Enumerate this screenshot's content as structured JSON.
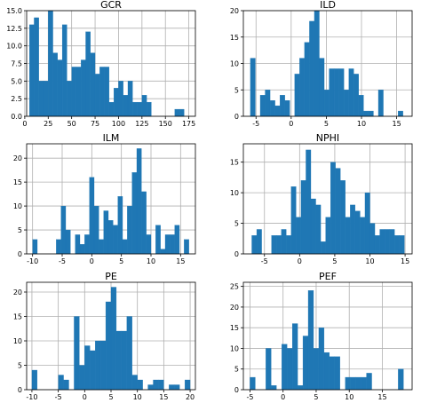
{
  "chart_data": [
    {
      "type": "bar",
      "title": "GCR",
      "bar_color": "#1f77b4",
      "grid": true,
      "xlim": [
        2,
        182
      ],
      "ylim": [
        0,
        15
      ],
      "xticks": [
        0,
        25,
        50,
        75,
        100,
        125,
        150,
        175
      ],
      "xtick_labels": [
        "0",
        "25",
        "50",
        "75",
        "100",
        "125",
        "150",
        "175"
      ],
      "yticks": [
        0,
        2.5,
        5,
        7.5,
        10,
        12.5,
        15
      ],
      "ytick_labels": [
        "0.0",
        "2.5",
        "5.0",
        "7.5",
        "10.0",
        "12.5",
        "15.0"
      ],
      "bin_edges": [
        5,
        10,
        15,
        20,
        25,
        30,
        35,
        40,
        45,
        50,
        55,
        60,
        65,
        70,
        75,
        80,
        85,
        90,
        95,
        100,
        105,
        110,
        115,
        120,
        125,
        130,
        135,
        140,
        145,
        150,
        155,
        160,
        165,
        170,
        175
      ],
      "counts": [
        13,
        14,
        5,
        5,
        15,
        9,
        8,
        13,
        5,
        7,
        7,
        8,
        12,
        9,
        6,
        7,
        7,
        2,
        4,
        5,
        3,
        5,
        2,
        2,
        3,
        2,
        0,
        0,
        0,
        0,
        0,
        1,
        1,
        0
      ]
    },
    {
      "type": "bar",
      "title": "ILD",
      "bar_color": "#1f77b4",
      "grid": true,
      "xlim": [
        -6.8,
        17.2
      ],
      "ylim": [
        0,
        20
      ],
      "xticks": [
        -5,
        0,
        5,
        10,
        15
      ],
      "xtick_labels": [
        "-5",
        "0",
        "5",
        "10",
        "15"
      ],
      "yticks": [
        0,
        5,
        10,
        15,
        20
      ],
      "ytick_labels": [
        "0",
        "5",
        "10",
        "15",
        "20"
      ],
      "bin_edges": [
        -5.8,
        -5.1,
        -4.4,
        -3.7,
        -3.0,
        -2.3,
        -1.6,
        -0.9,
        -0.2,
        0.5,
        1.2,
        1.9,
        2.6,
        3.3,
        4.0,
        4.7,
        5.4,
        6.1,
        6.8,
        7.5,
        8.2,
        8.9,
        9.6,
        10.3,
        11.0,
        11.7,
        12.4,
        13.1,
        13.8,
        14.5,
        15.2,
        15.9,
        16.6
      ],
      "counts": [
        11,
        0,
        4,
        5,
        3,
        2,
        4,
        3,
        0,
        8,
        11,
        14,
        18,
        20,
        11,
        5,
        9,
        9,
        9,
        5,
        9,
        8,
        4,
        1,
        1,
        0,
        5,
        0,
        0,
        0,
        1,
        0
      ]
    },
    {
      "type": "bar",
      "title": "ILM",
      "bar_color": "#1f77b4",
      "grid": true,
      "xlim": [
        -11,
        17.5
      ],
      "ylim": [
        0,
        23
      ],
      "xticks": [
        -10,
        -5,
        0,
        5,
        10,
        15
      ],
      "xtick_labels": [
        "-10",
        "-5",
        "0",
        "5",
        "10",
        "15"
      ],
      "yticks": [
        0,
        5,
        10,
        15,
        20
      ],
      "ytick_labels": [
        "0",
        "5",
        "10",
        "15",
        "20"
      ],
      "bin_edges": [
        -10.0,
        -9.2,
        -8.4,
        -7.6,
        -6.8,
        -6.0,
        -5.2,
        -4.4,
        -3.6,
        -2.8,
        -2.0,
        -1.2,
        -0.4,
        0.4,
        1.2,
        2.0,
        2.8,
        3.6,
        4.4,
        5.2,
        6.0,
        6.8,
        7.6,
        8.4,
        9.2,
        10.0,
        10.8,
        11.6,
        12.4,
        13.2,
        14.0,
        14.8,
        15.6,
        16.4
      ],
      "counts": [
        3,
        0,
        0,
        0,
        0,
        3,
        10,
        5,
        0,
        4,
        2,
        4,
        16,
        10,
        3,
        9,
        7,
        6,
        12,
        3,
        10,
        17,
        22,
        13,
        4,
        0,
        6,
        1,
        4,
        4,
        6,
        0,
        3
      ]
    },
    {
      "type": "bar",
      "title": "NPHI",
      "bar_color": "#1f77b4",
      "grid": true,
      "xlim": [
        -8,
        16
      ],
      "ylim": [
        0,
        18
      ],
      "xticks": [
        -5,
        0,
        5,
        10,
        15
      ],
      "xtick_labels": [
        "-5",
        "0",
        "5",
        "10",
        "15"
      ],
      "yticks": [
        0,
        5,
        10,
        15
      ],
      "ytick_labels": [
        "0",
        "5",
        "10",
        "15"
      ],
      "bin_edges": [
        -6.8,
        -6.1,
        -5.4,
        -4.7,
        -4.0,
        -3.3,
        -2.6,
        -1.9,
        -1.2,
        -0.5,
        0.2,
        0.9,
        1.6,
        2.3,
        3.0,
        3.7,
        4.4,
        5.1,
        5.8,
        6.5,
        7.2,
        7.9,
        8.6,
        9.3,
        10.0,
        10.7,
        11.4,
        12.1,
        12.8,
        13.5,
        14.2,
        14.9
      ],
      "counts": [
        3,
        4,
        0,
        0,
        3,
        3,
        4,
        3,
        11,
        6,
        12,
        17,
        9,
        8,
        2,
        6,
        15,
        14,
        12,
        6,
        8,
        7,
        6,
        10,
        5,
        3,
        4,
        4,
        4,
        3,
        3
      ]
    },
    {
      "type": "bar",
      "title": "PE",
      "bar_color": "#1f77b4",
      "grid": true,
      "xlim": [
        -11,
        21
      ],
      "ylim": [
        0,
        22
      ],
      "xticks": [
        -10,
        -5,
        0,
        5,
        10,
        15,
        20
      ],
      "xtick_labels": [
        "-10",
        "-5",
        "0",
        "5",
        "10",
        "15",
        "20"
      ],
      "yticks": [
        0,
        5,
        10,
        15,
        20
      ],
      "ytick_labels": [
        "0",
        "5",
        "10",
        "15",
        "20"
      ],
      "bin_edges": [
        -10.0,
        -9.0,
        -8.0,
        -7.0,
        -6.0,
        -5.0,
        -4.0,
        -3.0,
        -2.0,
        -1.0,
        0.0,
        1.0,
        2.0,
        3.0,
        4.0,
        5.0,
        6.0,
        7.0,
        8.0,
        9.0,
        10.0,
        11.0,
        12.0,
        13.0,
        14.0,
        15.0,
        16.0,
        17.0,
        18.0,
        19.0,
        20.0
      ],
      "counts": [
        4,
        0,
        0,
        0,
        0,
        3,
        2,
        0,
        15,
        5,
        9,
        8,
        10,
        10,
        18,
        21,
        12,
        12,
        15,
        3,
        2,
        0,
        1,
        2,
        2,
        0,
        1,
        1,
        0,
        2
      ]
    },
    {
      "type": "bar",
      "title": "PEF",
      "bar_color": "#1f77b4",
      "grid": true,
      "xlim": [
        -6,
        19.5
      ],
      "ylim": [
        0,
        26
      ],
      "xticks": [
        -5,
        0,
        5,
        10,
        15
      ],
      "xtick_labels": [
        "-5",
        "0",
        "5",
        "10",
        "15"
      ],
      "yticks": [
        0,
        5,
        10,
        15,
        20,
        25
      ],
      "ytick_labels": [
        "0",
        "5",
        "10",
        "15",
        "20",
        "25"
      ],
      "bin_edges": [
        -5.0,
        -4.2,
        -3.4,
        -2.6,
        -1.8,
        -1.0,
        -0.2,
        0.6,
        1.4,
        2.2,
        3.0,
        3.8,
        4.6,
        5.4,
        6.2,
        7.0,
        7.8,
        8.6,
        9.4,
        10.2,
        11.0,
        11.8,
        12.6,
        13.4,
        14.2,
        15.0,
        15.8,
        16.6,
        17.4,
        18.2
      ],
      "counts": [
        3,
        0,
        0,
        10,
        1,
        0,
        11,
        10,
        16,
        1,
        13,
        24,
        10,
        15,
        9,
        8,
        8,
        0,
        3,
        3,
        3,
        3,
        4,
        0,
        0,
        0,
        0,
        0,
        5
      ]
    }
  ]
}
